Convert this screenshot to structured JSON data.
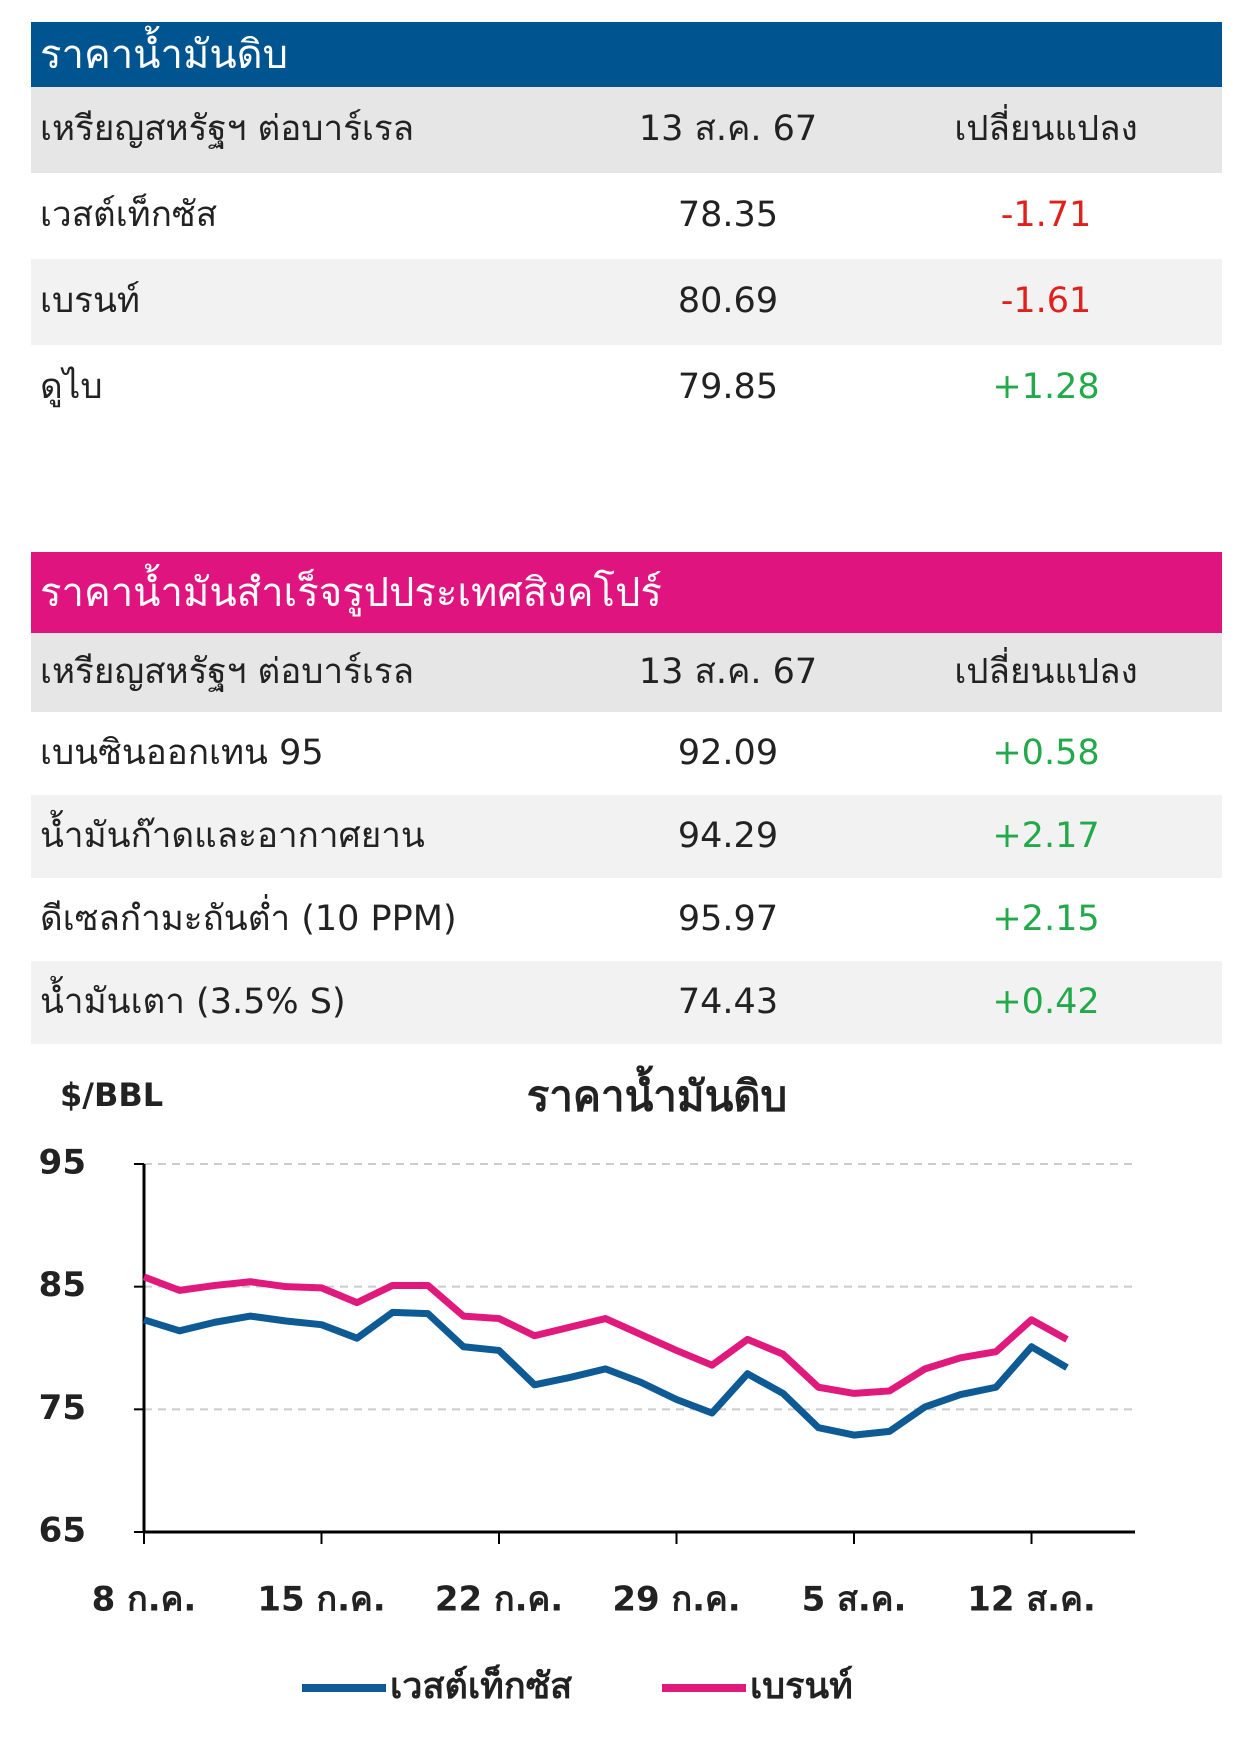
{
  "crude_table": {
    "title": "ราคาน้ำมันดิบ",
    "header": [
      "เหรียญสหรัฐฯ ต่อบาร์เรล",
      "13 ส.ค. 67",
      "เปลี่ยนแปลง"
    ],
    "rows": [
      [
        "เวสต์เท็กซัส",
        "78.35",
        "-1.71"
      ],
      [
        "เบรนท์",
        "80.69",
        "-1.61"
      ],
      [
        "ดูไบ",
        "79.85",
        "+1.28"
      ]
    ]
  },
  "product_table": {
    "title": "ราคาน้ำมันสำเร็จรูปประเทศสิงคโปร์",
    "header": [
      "เหรียญสหรัฐฯ ต่อบาร์เรล",
      "13 ส.ค. 67",
      "เปลี่ยนแปลง"
    ],
    "rows": [
      [
        "เบนซินออกเทน 95",
        "92.09",
        "+0.58"
      ],
      [
        "น้ำมันก๊าดและอากาศยาน",
        "94.29",
        "+2.17"
      ],
      [
        "ดีเซลกำมะถันต่ำ (10 PPM)",
        "95.97",
        "+2.15"
      ],
      [
        "น้ำมันเตา (3.5% S)",
        "74.43",
        "+0.42"
      ]
    ]
  },
  "chart_data": {
    "type": "line",
    "title": "ราคาน้ำมันดิบ",
    "y_label": "$/BBL",
    "categories": [
      "8 ก.ค.",
      null,
      null,
      null,
      null,
      "15 ก.ค.",
      null,
      null,
      null,
      null,
      "22 ก.ค.",
      null,
      null,
      null,
      null,
      "29 ก.ค.",
      null,
      null,
      null,
      null,
      "5 ส.ค.",
      null,
      null,
      null,
      null,
      "12 ส.ค.",
      null
    ],
    "series": [
      {
        "name": "เวสต์เท็กซัส",
        "color": "#0d5a94",
        "values": [
          82.3,
          81.4,
          82.1,
          82.6,
          82.2,
          81.9,
          80.8,
          82.9,
          82.8,
          80.1,
          79.8,
          77.0,
          77.6,
          78.3,
          77.2,
          75.8,
          74.7,
          77.9,
          76.3,
          73.5,
          72.9,
          73.2,
          75.2,
          76.2,
          76.8,
          80.1,
          78.4
        ]
      },
      {
        "name": "เบรนท์",
        "color": "#e0197d",
        "values": [
          85.8,
          84.7,
          85.1,
          85.4,
          85.0,
          84.9,
          83.7,
          85.1,
          85.1,
          82.6,
          82.4,
          81.0,
          81.7,
          82.4,
          81.1,
          79.8,
          78.6,
          80.7,
          79.5,
          76.8,
          76.3,
          76.5,
          78.3,
          79.2,
          79.7,
          82.3,
          80.7
        ]
      }
    ],
    "ylim": [
      65,
      95
    ],
    "yticks": [
      65,
      75,
      85,
      95
    ],
    "grid": true,
    "legend": "bottom"
  }
}
